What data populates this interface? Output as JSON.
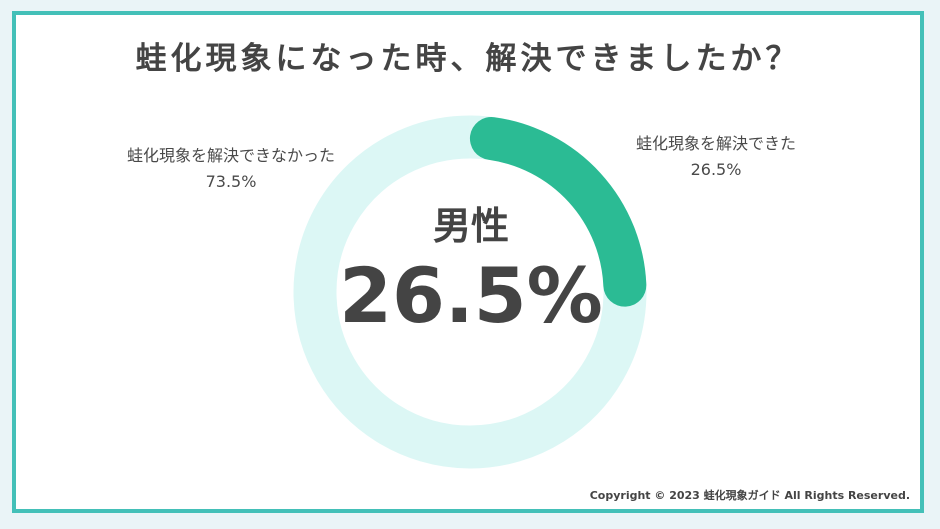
{
  "chart_data": {
    "type": "pie",
    "title": "蛙化現象になった時、解決できましたか？",
    "center_label": "男性",
    "center_value": "26.5%",
    "slices": [
      {
        "label": "蛙化現象を解決できた",
        "value": 26.5,
        "value_text": "26.5%",
        "color": "#2bbb94"
      },
      {
        "label": "蛙化現象を解決できなかった",
        "value": 73.5,
        "value_text": "73.5%",
        "color": "#dcf7f5"
      }
    ]
  },
  "footer": {
    "copyright": "Copyright © 2023 蛙化現象ガイド All Rights Reserved."
  }
}
